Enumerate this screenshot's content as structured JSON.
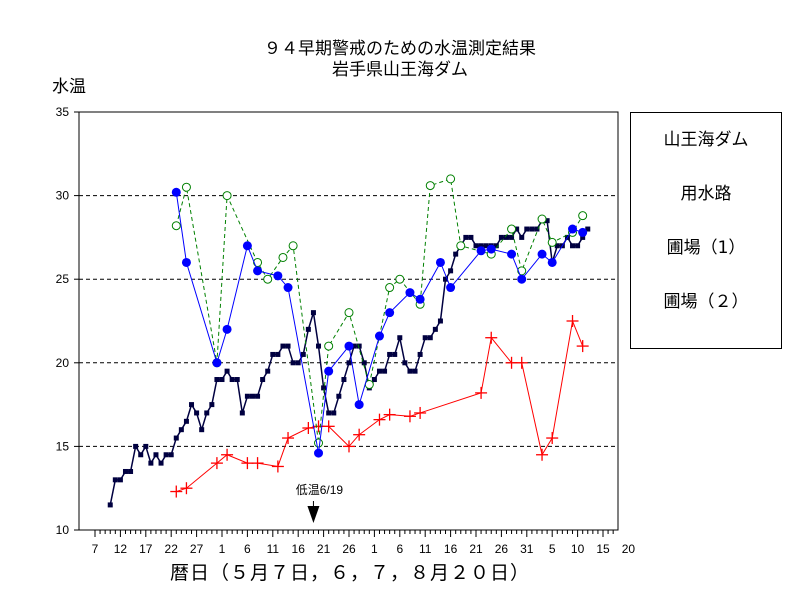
{
  "title_line1": "９４早期警戒のための水温測定結果",
  "title_line2": "岩手県山王海ダム",
  "chart_data": {
    "type": "line",
    "title": "９４早期警戒のための水温測定結果",
    "subtitle": "岩手県山王海ダム",
    "ylabel": "水温",
    "xlabel": "暦日（５月７日，６，７，８月２０日）",
    "ylim": [
      10,
      35
    ],
    "yticks": [
      10,
      15,
      20,
      25,
      30,
      35
    ],
    "grid": "horizontal dashed",
    "legend_position": "right",
    "x_tick_labels": [
      "7",
      "12",
      "17",
      "22",
      "27",
      "1",
      "6",
      "11",
      "16",
      "21",
      "26",
      "1",
      "6",
      "11",
      "16",
      "21",
      "26",
      "31",
      "5",
      "10",
      "15",
      "20"
    ],
    "annotation": {
      "text": "低温6/19",
      "x": 43
    },
    "series": [
      {
        "name": "山王海ダム",
        "color": "#000040",
        "style": "square-step",
        "points": [
          [
            3,
            11.5
          ],
          [
            4,
            13
          ],
          [
            5,
            13
          ],
          [
            6,
            13.5
          ],
          [
            7,
            13.5
          ],
          [
            8,
            15
          ],
          [
            9,
            14.5
          ],
          [
            10,
            15
          ],
          [
            11,
            14
          ],
          [
            12,
            14.5
          ],
          [
            13,
            14
          ],
          [
            14,
            14.5
          ],
          [
            15,
            14.5
          ],
          [
            16,
            15.5
          ],
          [
            17,
            16
          ],
          [
            18,
            16.5
          ],
          [
            19,
            17.5
          ],
          [
            20,
            17
          ],
          [
            21,
            16
          ],
          [
            22,
            17
          ],
          [
            23,
            17.5
          ],
          [
            24,
            19
          ],
          [
            25,
            19
          ],
          [
            26,
            19.5
          ],
          [
            27,
            19
          ],
          [
            28,
            19
          ],
          [
            29,
            17
          ],
          [
            30,
            18
          ],
          [
            31,
            18
          ],
          [
            32,
            18
          ],
          [
            33,
            19
          ],
          [
            34,
            19.5
          ],
          [
            35,
            20.5
          ],
          [
            36,
            20.5
          ],
          [
            37,
            21
          ],
          [
            38,
            21
          ],
          [
            39,
            20
          ],
          [
            40,
            20
          ],
          [
            41,
            20.5
          ],
          [
            42,
            22
          ],
          [
            43,
            23
          ],
          [
            44,
            21
          ],
          [
            45,
            18.5
          ],
          [
            46,
            17
          ],
          [
            47,
            17
          ],
          [
            48,
            18
          ],
          [
            49,
            19
          ],
          [
            50,
            20
          ],
          [
            51,
            21
          ],
          [
            52,
            21
          ],
          [
            53,
            20
          ],
          [
            54,
            18.5
          ],
          [
            55,
            19
          ],
          [
            56,
            19.5
          ],
          [
            57,
            19.5
          ],
          [
            58,
            20.5
          ],
          [
            59,
            20.5
          ],
          [
            60,
            21.5
          ],
          [
            61,
            20
          ],
          [
            62,
            19.5
          ],
          [
            63,
            19.5
          ],
          [
            64,
            20.5
          ],
          [
            65,
            21.5
          ],
          [
            66,
            21.5
          ],
          [
            67,
            22
          ],
          [
            68,
            22.5
          ],
          [
            69,
            25
          ],
          [
            70,
            25.5
          ],
          [
            71,
            26.5
          ],
          [
            72,
            27
          ],
          [
            73,
            27.5
          ],
          [
            74,
            27.5
          ],
          [
            75,
            27
          ],
          [
            76,
            27
          ],
          [
            77,
            27
          ],
          [
            78,
            27
          ],
          [
            79,
            27
          ],
          [
            80,
            27.5
          ],
          [
            81,
            27.5
          ],
          [
            82,
            27.5
          ],
          [
            83,
            28
          ],
          [
            84,
            27.5
          ],
          [
            85,
            28
          ],
          [
            86,
            28
          ],
          [
            87,
            28
          ],
          [
            88,
            28.5
          ],
          [
            89,
            28.5
          ],
          [
            90,
            26
          ],
          [
            91,
            27
          ],
          [
            92,
            27
          ],
          [
            93,
            27.5
          ],
          [
            94,
            27
          ],
          [
            95,
            27
          ],
          [
            96,
            27.5
          ],
          [
            97,
            28
          ]
        ]
      },
      {
        "name": "用水路",
        "color": "#ff0000",
        "style": "plus",
        "points": [
          [
            16,
            12.3
          ],
          [
            18,
            12.5
          ],
          [
            24,
            14
          ],
          [
            26,
            14.5
          ],
          [
            30,
            14
          ],
          [
            32,
            14
          ],
          [
            36,
            13.8
          ],
          [
            38,
            15.5
          ],
          [
            42,
            16.1
          ],
          [
            44,
            16.2
          ],
          [
            46,
            16.2
          ],
          [
            50,
            15
          ],
          [
            52,
            15.7
          ],
          [
            56,
            16.6
          ],
          [
            58,
            16.9
          ],
          [
            62,
            16.8
          ],
          [
            64,
            17
          ],
          [
            76,
            18.2
          ],
          [
            78,
            21.5
          ],
          [
            82,
            20
          ],
          [
            84,
            20
          ],
          [
            88,
            14.5
          ],
          [
            90,
            15.5
          ],
          [
            94,
            22.5
          ],
          [
            96,
            21
          ]
        ]
      },
      {
        "name": "圃場（1）",
        "color": "#008000",
        "style": "dashed-circle",
        "points": [
          [
            16,
            28.2
          ],
          [
            18,
            30.5
          ],
          [
            24,
            20
          ],
          [
            26,
            30
          ],
          [
            32,
            26
          ],
          [
            34,
            25
          ],
          [
            37,
            26.3
          ],
          [
            39,
            27
          ],
          [
            44,
            15.2
          ],
          [
            46,
            21
          ],
          [
            50,
            23
          ],
          [
            54,
            18.7
          ],
          [
            58,
            24.5
          ],
          [
            60,
            25
          ],
          [
            64,
            23.5
          ],
          [
            66,
            30.6
          ],
          [
            70,
            31
          ],
          [
            72,
            27
          ],
          [
            78,
            26.5
          ],
          [
            82,
            28
          ],
          [
            84,
            25.5
          ],
          [
            88,
            28.6
          ],
          [
            90,
            27.2
          ],
          [
            94,
            27.8
          ],
          [
            96,
            28.8
          ]
        ]
      },
      {
        "name": "圃場（２）",
        "color": "#0000ff",
        "style": "solid-dot",
        "points": [
          [
            16,
            30.2
          ],
          [
            18,
            26
          ],
          [
            24,
            20
          ],
          [
            26,
            22
          ],
          [
            30,
            27
          ],
          [
            32,
            25.5
          ],
          [
            36,
            25.2
          ],
          [
            38,
            24.5
          ],
          [
            44,
            14.6
          ],
          [
            46,
            19.5
          ],
          [
            50,
            21
          ],
          [
            52,
            17.5
          ],
          [
            56,
            21.6
          ],
          [
            58,
            23
          ],
          [
            62,
            24.2
          ],
          [
            64,
            23.8
          ],
          [
            68,
            26
          ],
          [
            70,
            24.5
          ],
          [
            76,
            26.7
          ],
          [
            78,
            26.8
          ],
          [
            82,
            26.5
          ],
          [
            84,
            25
          ],
          [
            88,
            26.5
          ],
          [
            90,
            26
          ],
          [
            94,
            28
          ],
          [
            96,
            27.8
          ]
        ]
      }
    ]
  }
}
